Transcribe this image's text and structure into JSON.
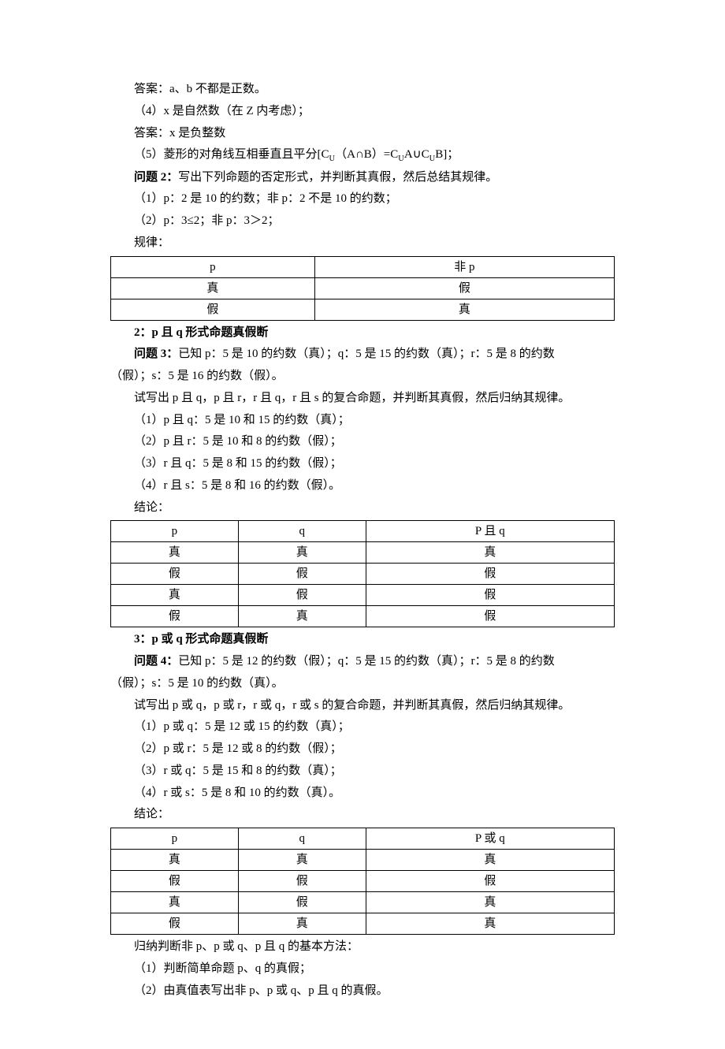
{
  "lines": {
    "l1": "答案：a、b 不都是正数。",
    "l2": "（4）x 是自然数（在 Z 内考虑）；",
    "l3": "答案：x 是负整数",
    "l4_pre": "（5）菱形的对角线互相垂直且平分[C",
    "l4_u1": "U",
    "l4_mid1": "（A∩B）=C",
    "l4_u2": "U",
    "l4_mid2": "A∪C",
    "l4_u3": "U",
    "l4_post": "B]；",
    "q2_label": "问题 2：",
    "q2_text": "写出下列命题的否定形式，并判断其真假，然后总结其规律。",
    "q2_1": "（1）p：2 是 10 的约数；非 p：2 不是 10 的约数；",
    "q2_2": "（2）p：3≤2；非 p：3＞2；",
    "q2_concl": "规律：",
    "s2_title": "2：p 且 q 形式命题真假断",
    "q3_label": "问题 3：",
    "q3_text_a": "已知 p：5 是 10 的约数（真）；q：5 是 15 的约数（真）；r：5 是 8 的约数",
    "q3_text_b": "（假）；s：5 是 16 的约数（假）。",
    "q3_try": "试写出 p 且 q，p 且 r，r 且 q，r 且 s 的复合命题，并判断其真假，然后归纳其规律。",
    "q3_1": "（1）p 且 q：5 是 10 和 15 的约数（真）；",
    "q3_2": "（2）p 且 r：5 是 10 和 8 的约数（假）；",
    "q3_3": "（3）r 且 q：5 是 8 和 15 的约数（假）；",
    "q3_4": "（4）r 且 s：5 是 8 和 16 的约数（假）。",
    "q3_concl": "结论：",
    "s3_title": "3：p 或 q 形式命题真假断",
    "q4_label": "问题 4：",
    "q4_text_a": "已知 p：5 是 12 的约数（假）；q：5 是 15 的约数（真）；r：5 是 8 的约数",
    "q4_text_b": "（假）；s：5 是 10 的约数（真）。",
    "q4_try": "试写出 p 或 q，p 或 r，r 或 q，r 或 s 的复合命题，并判断其真假，然后归纳其规律。",
    "q4_1": "（1）p 或 q：5 是 12 或 15 的约数（真）；",
    "q4_2": "（2）p 或 r：5 是 12 或 8 的约数（假）；",
    "q4_3": "（3）r 或 q：5 是 15 和 8 的约数（真）；",
    "q4_4": "（4）r 或 s：5 是 8 和 10 的约数（真）。",
    "q4_concl": "结论：",
    "summary": "归纳判断非 p、p 或 q、p 且 q 的基本方法：",
    "sum1": "（1）判断简单命题 p、q 的真假；",
    "sum2": "（2）由真值表写出非 p、p 或 q、p 且 q 的真假。"
  },
  "table1": {
    "h1": "p",
    "h2": "非 p",
    "r1c1": "真",
    "r1c2": "假",
    "r2c1": "假",
    "r2c2": "真"
  },
  "table2": {
    "h1": "p",
    "h2": "q",
    "h3": "P 且 q",
    "r1c1": "真",
    "r1c2": "真",
    "r1c3": "真",
    "r2c1": "假",
    "r2c2": "假",
    "r2c3": "假",
    "r3c1": "真",
    "r3c2": "假",
    "r3c3": "假",
    "r4c1": "假",
    "r4c2": "真",
    "r4c3": "假"
  },
  "table3": {
    "h1": "p",
    "h2": "q",
    "h3": "P 或 q",
    "r1c1": "真",
    "r1c2": "真",
    "r1c3": "真",
    "r2c1": "假",
    "r2c2": "假",
    "r2c3": "假",
    "r3c1": "真",
    "r3c2": "假",
    "r3c3": "真",
    "r4c1": "假",
    "r4c2": "真",
    "r4c3": "真"
  }
}
